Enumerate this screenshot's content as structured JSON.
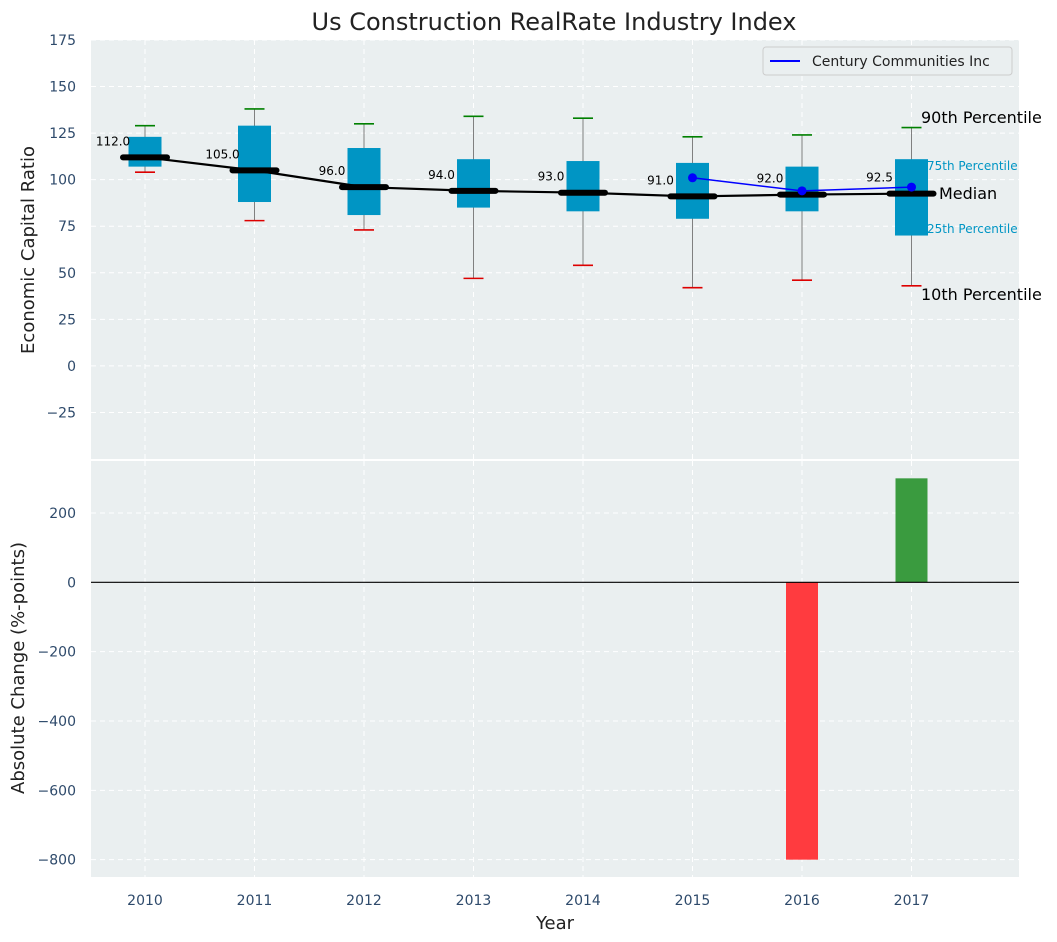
{
  "chart_data": {
    "title": "Us Construction RealRate Industry Index",
    "type": "box",
    "colors": {
      "box": "#0095c4",
      "median_line": "#000000",
      "company_line": "#0000ff",
      "whisker_top": "#008000",
      "whisker_bottom": "#dd0000",
      "bar_positive": "#3a9b3f",
      "bar_negative": "#ff3b3f",
      "panel_bg": "#eaeff0"
    },
    "top": {
      "ylabel": "Economic Capital Ratio",
      "ylim": [
        -50,
        175
      ],
      "yticks": [
        -25,
        0,
        25,
        50,
        75,
        100,
        125,
        150,
        175
      ],
      "years": [
        "2010",
        "2011",
        "2012",
        "2013",
        "2014",
        "2015",
        "2016",
        "2017"
      ],
      "p10": [
        104,
        78,
        73,
        47,
        54,
        42,
        46,
        43
      ],
      "p25": [
        107,
        88,
        81,
        85,
        83,
        79,
        83,
        70
      ],
      "median": [
        112,
        105,
        96,
        94,
        93,
        91,
        92,
        92.5
      ],
      "p75": [
        123,
        129,
        117,
        111,
        110,
        109,
        107,
        111
      ],
      "p90": [
        129,
        138,
        130,
        134,
        133,
        123,
        124,
        128
      ],
      "median_labels": [
        "112.0",
        "105.0",
        "96.0",
        "94.0",
        "93.0",
        "91.0",
        "92.0",
        "92.5"
      ],
      "company": {
        "name": "Century Communities Inc",
        "years": [
          "2015",
          "2016",
          "2017"
        ],
        "values": [
          101,
          94,
          96
        ]
      },
      "annotations": {
        "p90": "90th Percentile",
        "p75": "75th Percentile",
        "median": "Median",
        "p25": "25th Percentile",
        "p10": "10th Percentile"
      },
      "legend_position": "top-right"
    },
    "bottom": {
      "xlabel": "Year",
      "ylabel": "Absolute Change (%-points)",
      "ylim": [
        -850,
        350
      ],
      "yticks": [
        -800,
        -600,
        -400,
        -200,
        0,
        200
      ],
      "categories": [
        "2010",
        "2011",
        "2012",
        "2013",
        "2014",
        "2015",
        "2016",
        "2017"
      ],
      "values": [
        null,
        null,
        null,
        null,
        null,
        null,
        -800,
        300
      ]
    }
  }
}
